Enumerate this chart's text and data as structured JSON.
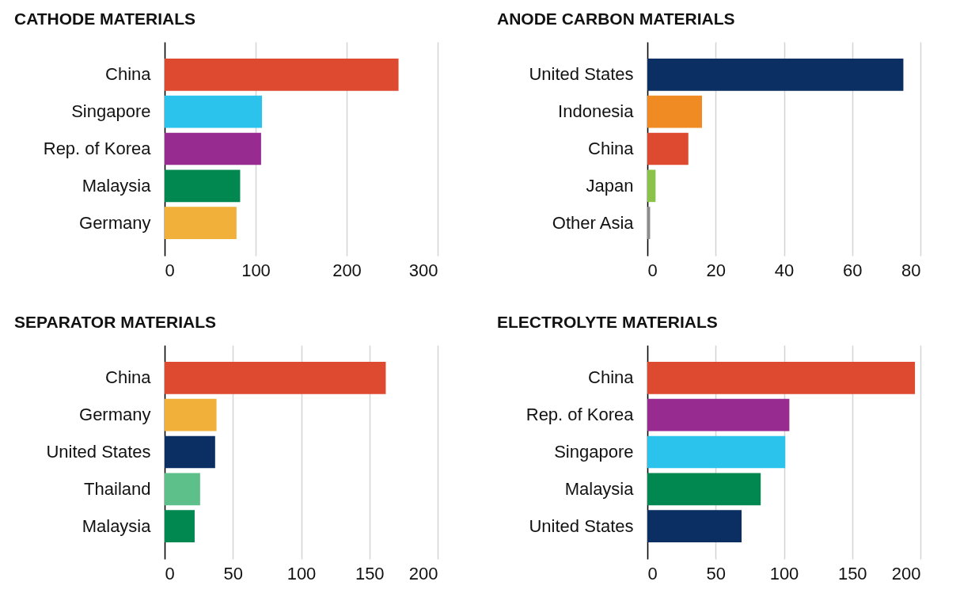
{
  "chart_data": [
    {
      "type": "bar",
      "orientation": "horizontal",
      "title": "CATHODE MATERIALS",
      "categories": [
        "China",
        "Singapore",
        "Rep. of Korea",
        "Malaysia",
        "Germany"
      ],
      "values": [
        257,
        107,
        106,
        83,
        79
      ],
      "colors": [
        "#dd4a2f",
        "#2bc2eb",
        "#982b8f",
        "#008850",
        "#f0b03a"
      ],
      "xlim": [
        0,
        300
      ],
      "xticks": [
        0,
        100,
        200,
        300
      ],
      "grid": "x"
    },
    {
      "type": "bar",
      "orientation": "horizontal",
      "title": "ANODE CARBON MATERIALS",
      "categories": [
        "United States",
        "Indonesia",
        "China",
        "Japan",
        "Other Asia"
      ],
      "values": [
        75,
        16,
        12,
        2.4,
        0.8
      ],
      "colors": [
        "#0b2f63",
        "#f08a23",
        "#dd4a2f",
        "#8bc34a",
        "#8c8c8c"
      ],
      "xlim": [
        0,
        80
      ],
      "xticks": [
        0,
        20,
        40,
        60,
        80
      ],
      "grid": "x"
    },
    {
      "type": "bar",
      "orientation": "horizontal",
      "title": "SEPARATOR MATERIALS",
      "categories": [
        "China",
        "Germany",
        "United States",
        "Thailand",
        "Malaysia"
      ],
      "values": [
        162,
        38,
        37,
        26,
        22
      ],
      "colors": [
        "#dd4a2f",
        "#f0b03a",
        "#0b2f63",
        "#5dbf8a",
        "#008850"
      ],
      "xlim": [
        0,
        200
      ],
      "xticks": [
        0,
        50,
        100,
        150,
        200
      ],
      "grid": "x"
    },
    {
      "type": "bar",
      "orientation": "horizontal",
      "title": "ELECTROLYTE MATERIALS",
      "categories": [
        "China",
        "Rep. of Korea",
        "Singapore",
        "Malaysia",
        "United States"
      ],
      "values": [
        196,
        104,
        101,
        83,
        69
      ],
      "colors": [
        "#dd4a2f",
        "#982b8f",
        "#2bc2eb",
        "#008850",
        "#0b2f63"
      ],
      "xlim": [
        0,
        200
      ],
      "xticks": [
        0,
        50,
        100,
        150,
        200
      ],
      "grid": "x"
    }
  ]
}
